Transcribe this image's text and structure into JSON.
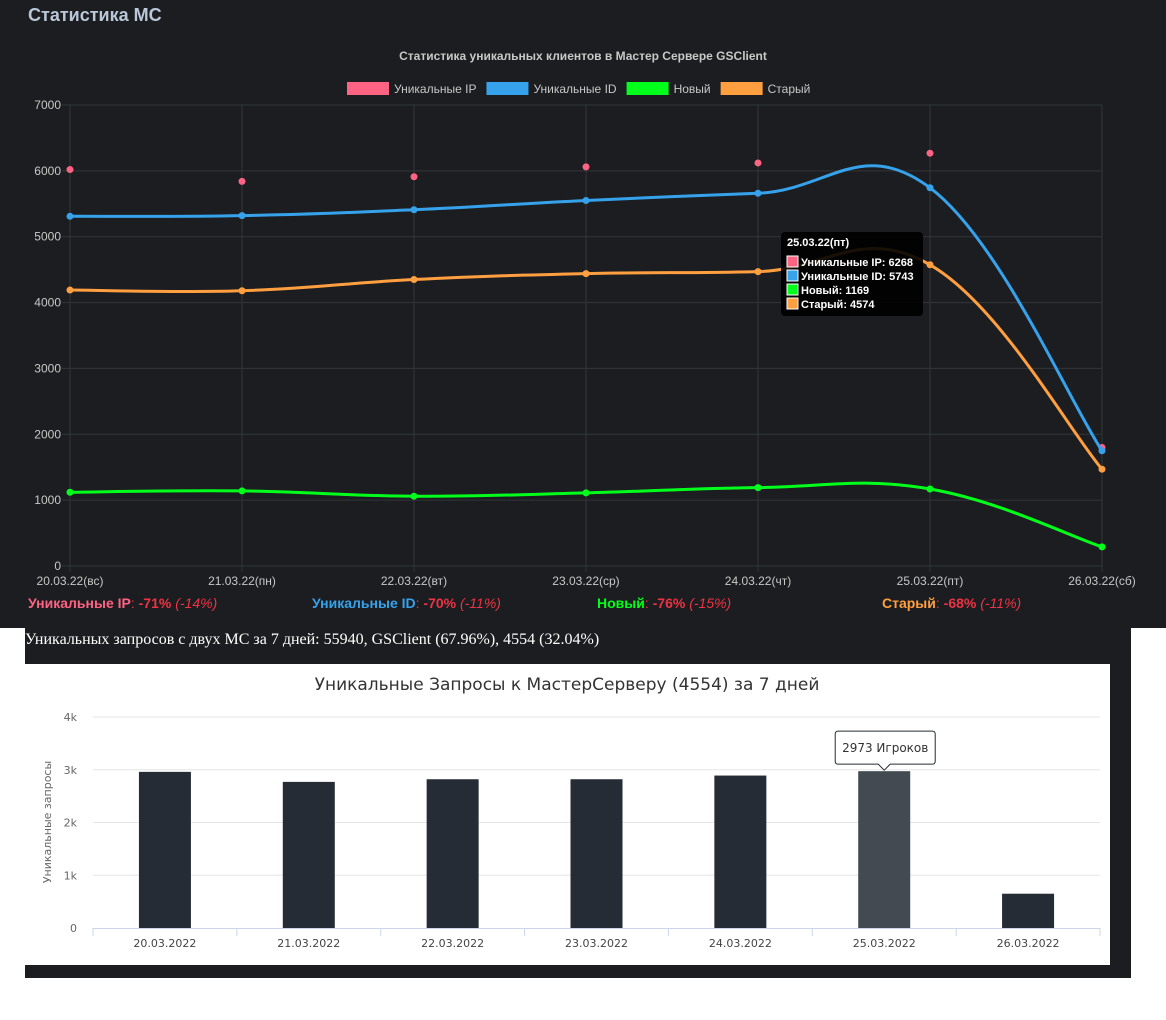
{
  "page_title": "Статистика МС",
  "summary_text": "Уникальных запросов с двух МС за 7 дней: 55940, GSClient (67.96%), 4554 (32.04%)",
  "colors": {
    "ip": "#ff6384",
    "id": "#36a2eb",
    "new": "#00ff1a",
    "old": "#ff9f40",
    "bar": "#262c35",
    "bar_hover": "#434a52"
  },
  "chart_data": [
    {
      "type": "line",
      "title": "Статистика уникальных клиентов в Мастер Сервере GSClient",
      "categories": [
        "20.03.22(вс)",
        "21.03.22(пн)",
        "22.03.22(вт)",
        "23.03.22(ср)",
        "24.03.22(чт)",
        "25.03.22(пт)",
        "26.03.22(сб)"
      ],
      "ylim": [
        0,
        7000
      ],
      "yticks": [
        "0",
        "1000",
        "2000",
        "3000",
        "4000",
        "5000",
        "6000",
        "7000"
      ],
      "legend_position": "top",
      "grid": true,
      "series": [
        {
          "name": "Уникальные IP",
          "key": "ip",
          "values": [
            6020,
            5840,
            5910,
            6060,
            6120,
            6268,
            1800
          ],
          "line": false
        },
        {
          "name": "Уникальные ID",
          "key": "id",
          "values": [
            5310,
            5320,
            5410,
            5550,
            5660,
            5743,
            1750
          ],
          "line": true
        },
        {
          "name": "Новый",
          "key": "new",
          "values": [
            1120,
            1140,
            1060,
            1110,
            1190,
            1169,
            290
          ],
          "line": true
        },
        {
          "name": "Старый",
          "key": "old",
          "values": [
            4190,
            4180,
            4350,
            4440,
            4470,
            4574,
            1470
          ],
          "line": true
        }
      ],
      "tooltip": {
        "title": "25.03.22(пт)",
        "lines": [
          "Уникальные IP: 6268",
          "Уникальные ID: 5743",
          "Новый: 1169",
          "Старый: 4574"
        ]
      }
    },
    {
      "type": "bar",
      "title": "Уникальные Запросы к МастерСерверу (4554) за 7 дней",
      "ylabel": "Уникальные запросы",
      "categories": [
        "20.03.2022",
        "21.03.2022",
        "22.03.2022",
        "23.03.2022",
        "24.03.2022",
        "25.03.2022",
        "26.03.2022"
      ],
      "values": [
        2960,
        2770,
        2820,
        2820,
        2890,
        2973,
        650
      ],
      "ylim": [
        0,
        4000
      ],
      "yticks": [
        "0",
        "1k",
        "2k",
        "3k",
        "4k"
      ],
      "grid": true,
      "highlight_index": 5,
      "tooltip": "2973 Игроков"
    }
  ],
  "stats": [
    {
      "name": "Уникальные IP",
      "key": "ip",
      "pct": "-71%",
      "sub": "(-14%)"
    },
    {
      "name": "Уникальные ID",
      "key": "id",
      "pct": "-70%",
      "sub": "(-11%)"
    },
    {
      "name": "Новый",
      "key": "new",
      "pct": "-76%",
      "sub": "(-15%)"
    },
    {
      "name": "Старый",
      "key": "old",
      "pct": "-68%",
      "sub": "(-11%)"
    }
  ]
}
